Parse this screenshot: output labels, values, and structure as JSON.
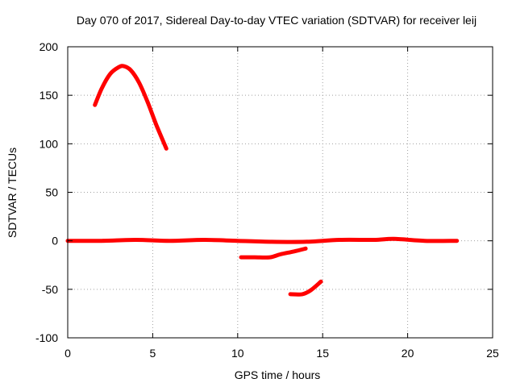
{
  "chart_data": {
    "type": "line",
    "title": "Day 070 of 2017, Sidereal Day-to-day VTEC variation (SDTVAR) for receiver leij",
    "xlabel": "GPS time / hours",
    "ylabel": "SDTVAR / TECUs",
    "xlim": [
      0,
      25
    ],
    "ylim": [
      -100,
      200
    ],
    "xticks": [
      0,
      5,
      10,
      15,
      20,
      25
    ],
    "yticks": [
      -100,
      -50,
      0,
      50,
      100,
      150,
      200
    ],
    "grid": true,
    "color": "#ff0000",
    "series": [
      {
        "name": "arc-high",
        "points": [
          [
            1.6,
            140
          ],
          [
            2.0,
            157
          ],
          [
            2.5,
            172
          ],
          [
            3.0,
            179
          ],
          [
            3.3,
            180
          ],
          [
            3.7,
            176
          ],
          [
            4.2,
            163
          ],
          [
            4.7,
            143
          ],
          [
            5.2,
            120
          ],
          [
            5.8,
            95
          ]
        ]
      },
      {
        "name": "baseline",
        "points": [
          [
            0,
            0
          ],
          [
            2,
            0
          ],
          [
            4,
            1
          ],
          [
            6,
            0
          ],
          [
            8,
            1
          ],
          [
            10,
            0
          ],
          [
            12,
            -1
          ],
          [
            14,
            -1
          ],
          [
            16,
            1
          ],
          [
            18,
            1
          ],
          [
            19.2,
            2
          ],
          [
            21,
            0
          ],
          [
            22.9,
            0
          ]
        ]
      },
      {
        "name": "arc-mid",
        "points": [
          [
            10.2,
            -17
          ],
          [
            11,
            -17
          ],
          [
            11.9,
            -17
          ],
          [
            12.5,
            -14
          ],
          [
            13.3,
            -11
          ],
          [
            14.0,
            -8
          ]
        ]
      },
      {
        "name": "arc-low",
        "points": [
          [
            13.1,
            -55
          ],
          [
            13.8,
            -55
          ],
          [
            14.3,
            -51
          ],
          [
            14.9,
            -42
          ]
        ]
      }
    ]
  }
}
